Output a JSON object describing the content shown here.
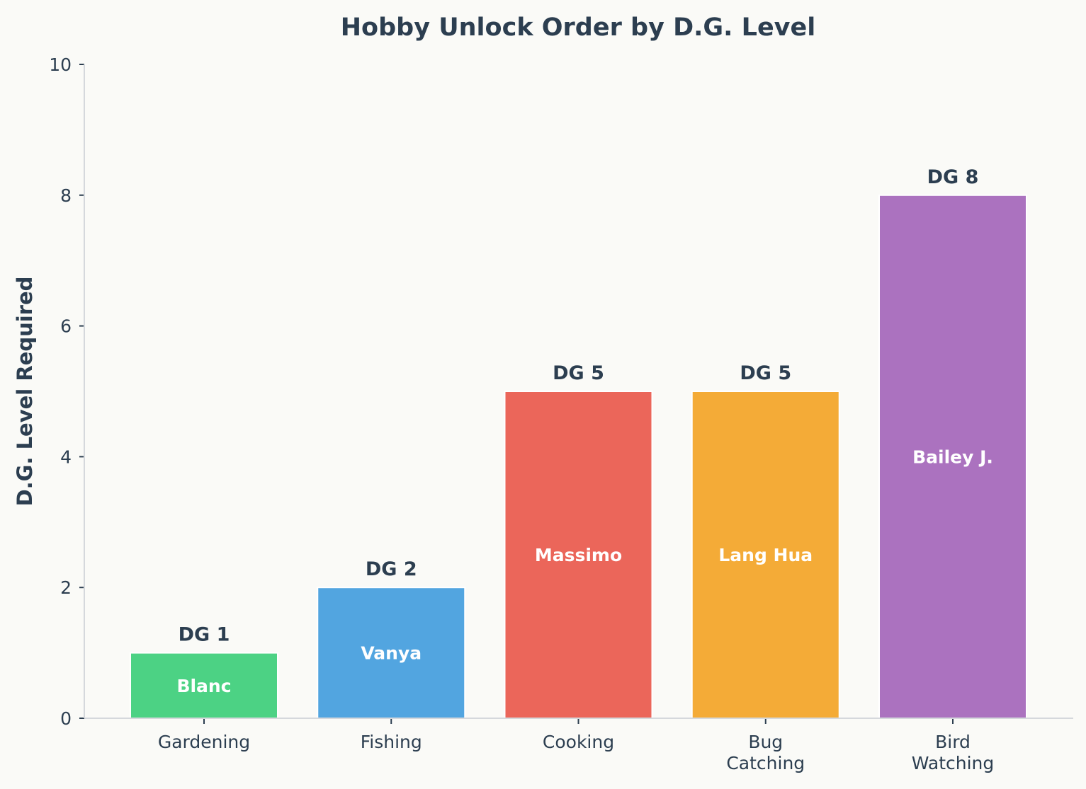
{
  "chart_data": {
    "type": "bar",
    "title": "Hobby Unlock Order by D.G. Level",
    "ylabel": "D.G. Level Required",
    "xlabel": "",
    "ylim": [
      0,
      10
    ],
    "yticks": [
      "0",
      "2",
      "4",
      "6",
      "8",
      "10"
    ],
    "grid": false,
    "categories": [
      [
        "Gardening"
      ],
      [
        "Fishing"
      ],
      [
        "Cooking"
      ],
      [
        "Bug",
        "Catching"
      ],
      [
        "Bird",
        "Watching"
      ]
    ],
    "values": [
      1,
      2,
      5,
      5,
      8
    ],
    "value_labels": [
      "DG 1",
      "DG 2",
      "DG 5",
      "DG 5",
      "DG 8"
    ],
    "bar_labels": [
      "Blanc",
      "Vanya",
      "Massimo",
      "Lang Hua",
      "Bailey J."
    ],
    "colors": [
      "#4cd284",
      "#52a5e0",
      "#eb665a",
      "#f4ab37",
      "#ab72bf"
    ]
  }
}
